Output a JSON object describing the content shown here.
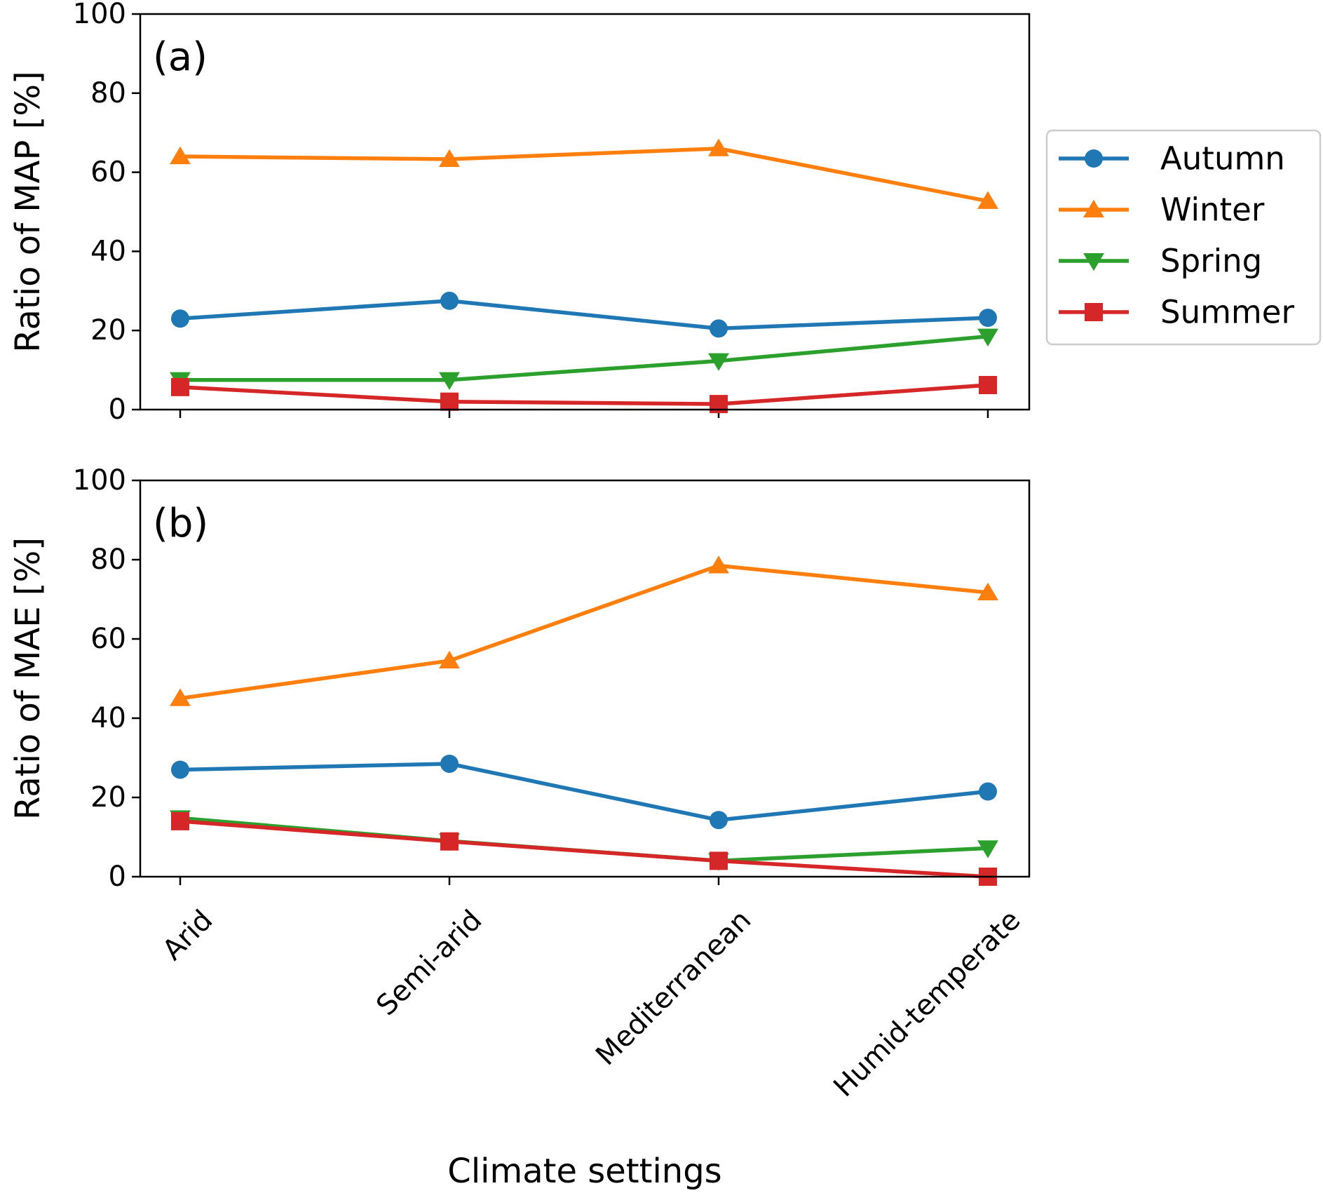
{
  "chart_data": [
    {
      "type": "line",
      "panel_label": "(a)",
      "ylabel": "Ratio of MAP [%]",
      "xlabel": "",
      "categories": [
        "Arid",
        "Semi-arid",
        "Mediterranean",
        "Humid-temperate"
      ],
      "ylim": [
        0,
        100
      ],
      "yticks": [
        "0",
        "20",
        "40",
        "60",
        "80",
        "100"
      ],
      "show_xtick_labels": false,
      "grid": false,
      "series": [
        {
          "name": "Autumn",
          "color": "#1f77b4",
          "marker": "circle",
          "values": [
            23,
            27.5,
            20.5,
            23.2
          ]
        },
        {
          "name": "Winter",
          "color": "#ff7f0e",
          "marker": "triangle-up",
          "values": [
            64,
            63.3,
            66,
            52.7
          ]
        },
        {
          "name": "Spring",
          "color": "#2ca02c",
          "marker": "triangle-down",
          "values": [
            7.5,
            7.5,
            12.3,
            18.5
          ]
        },
        {
          "name": "Summer",
          "color": "#d62728",
          "marker": "square",
          "values": [
            5.7,
            2,
            1.4,
            6.2
          ]
        }
      ]
    },
    {
      "type": "line",
      "panel_label": "(b)",
      "ylabel": "Ratio of MAE [%]",
      "xlabel": "Climate settings",
      "categories": [
        "Arid",
        "Semi-arid",
        "Mediterranean",
        "Humid-temperate"
      ],
      "ylim": [
        0,
        100
      ],
      "yticks": [
        "0",
        "20",
        "40",
        "60",
        "80",
        "100"
      ],
      "show_xtick_labels": true,
      "grid": false,
      "series": [
        {
          "name": "Autumn",
          "color": "#1f77b4",
          "marker": "circle",
          "values": [
            27,
            28.5,
            14.3,
            21.5
          ]
        },
        {
          "name": "Winter",
          "color": "#ff7f0e",
          "marker": "triangle-up",
          "values": [
            45,
            54.5,
            78.5,
            71.7
          ]
        },
        {
          "name": "Spring",
          "color": "#2ca02c",
          "marker": "triangle-down",
          "values": [
            14.8,
            9,
            4,
            7.2
          ]
        },
        {
          "name": "Summer",
          "color": "#d62728",
          "marker": "square",
          "values": [
            14,
            8.9,
            4,
            0
          ]
        }
      ]
    }
  ],
  "legend": {
    "placement": "right, beside panel (a)",
    "entries": [
      {
        "name": "Autumn",
        "color": "#1f77b4",
        "marker": "circle"
      },
      {
        "name": "Winter",
        "color": "#ff7f0e",
        "marker": "triangle-up"
      },
      {
        "name": "Spring",
        "color": "#2ca02c",
        "marker": "triangle-down"
      },
      {
        "name": "Summer",
        "color": "#d62728",
        "marker": "square"
      }
    ]
  }
}
